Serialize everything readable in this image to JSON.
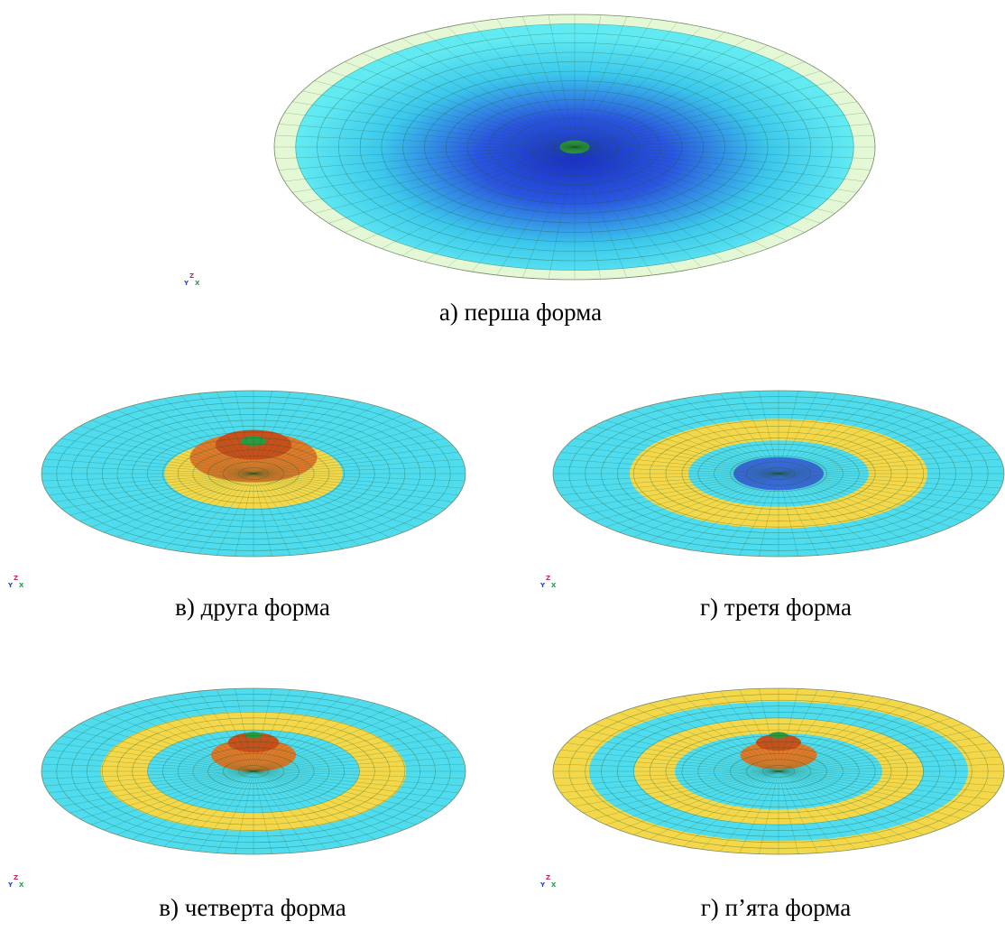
{
  "panels": [
    {
      "caption": "а) перша форма",
      "triad": {
        "y": "Y",
        "z": "Z",
        "x": "X"
      }
    },
    {
      "caption": "в) друга форма",
      "triad": {
        "y": "Y",
        "z": "Z",
        "x": "X"
      }
    },
    {
      "caption": "г) третя форма",
      "triad": {
        "y": "Y",
        "z": "Z",
        "x": "X"
      }
    },
    {
      "caption": "в) четверта форма",
      "triad": {
        "y": "Y",
        "z": "Z",
        "x": "X"
      }
    },
    {
      "caption": "г) п’ята форма",
      "triad": {
        "y": "Y",
        "z": "Z",
        "x": "X"
      }
    }
  ]
}
